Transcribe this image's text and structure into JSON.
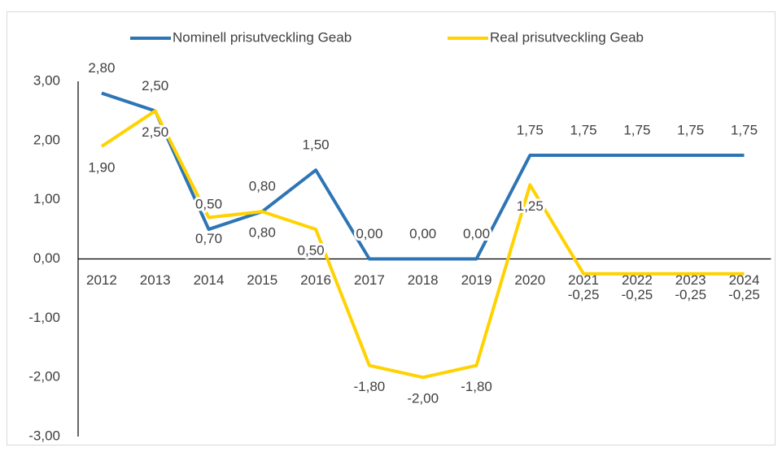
{
  "chart_data": {
    "type": "line",
    "categories": [
      "2012",
      "2013",
      "2014",
      "2015",
      "2016",
      "2017",
      "2018",
      "2019",
      "2020",
      "2021",
      "2022",
      "2023",
      "2024"
    ],
    "series": [
      {
        "name": "Nominell prisutveckling Geab",
        "color": "#2e75b6",
        "values": [
          2.8,
          2.5,
          0.5,
          0.8,
          1.5,
          0,
          0,
          0,
          1.75,
          1.75,
          1.75,
          1.75,
          1.75
        ],
        "value_labels": [
          "2,80",
          "2,50",
          "0,50",
          "0,80",
          "1,50",
          "0,00",
          "0,00",
          "0,00",
          "1,75",
          "1,75",
          "1,75",
          "1,75",
          "1,75"
        ]
      },
      {
        "name": "Real prisutveckling Geab",
        "color": "#ffd200",
        "values": [
          1.9,
          2.5,
          0.7,
          0.8,
          0.5,
          -1.8,
          -2,
          -1.8,
          1.25,
          -0.25,
          -0.25,
          -0.25,
          -0.25
        ],
        "value_labels": [
          "1,90",
          "2,50",
          "0,70",
          "0,80",
          "0,50",
          "-1,80",
          "-2,00",
          "-1,80",
          "1,25",
          "-0,25",
          "-0,25",
          "-0,25",
          "-0,25"
        ]
      }
    ],
    "ylim": [
      -3,
      3
    ],
    "yticks": [
      {
        "value": -3,
        "label": "-3,00"
      },
      {
        "value": -2,
        "label": "-2,00"
      },
      {
        "value": -1,
        "label": "-1,00"
      },
      {
        "value": 0,
        "label": "0,00"
      },
      {
        "value": 1,
        "label": "1,00"
      },
      {
        "value": 2,
        "label": "2,00"
      },
      {
        "value": 3,
        "label": "3,00"
      }
    ],
    "legend": "top",
    "grid": false
  }
}
